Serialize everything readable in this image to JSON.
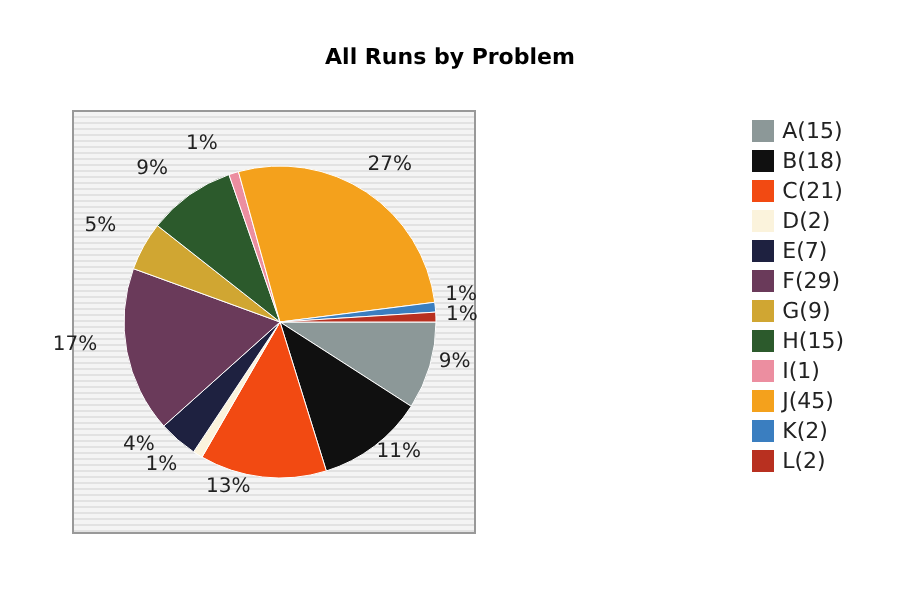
{
  "chart_data": {
    "type": "pie",
    "title": "All Runs by Problem",
    "categories": [
      "A(15)",
      "B(18)",
      "C(21)",
      "D(2)",
      "E(7)",
      "F(29)",
      "G(9)",
      "H(15)",
      "I(1)",
      "J(45)",
      "K(2)",
      "L(2)"
    ],
    "values": [
      9,
      11,
      13,
      1,
      4,
      17,
      5,
      9,
      1,
      27,
      1,
      1
    ],
    "value_labels": [
      "9%",
      "11%",
      "13%",
      "1%",
      "4%",
      "17%",
      "5%",
      "9%",
      "1%",
      "27%",
      "1%",
      "1%"
    ],
    "colors": [
      "#8c9898",
      "#101010",
      "#f24a12",
      "#fbf3dc",
      "#1e2140",
      "#6a3a5a",
      "#d0a632",
      "#2c5a2c",
      "#ec8ea0",
      "#f4a11c",
      "#3a7ec0",
      "#b83020"
    ],
    "legend": "right"
  }
}
